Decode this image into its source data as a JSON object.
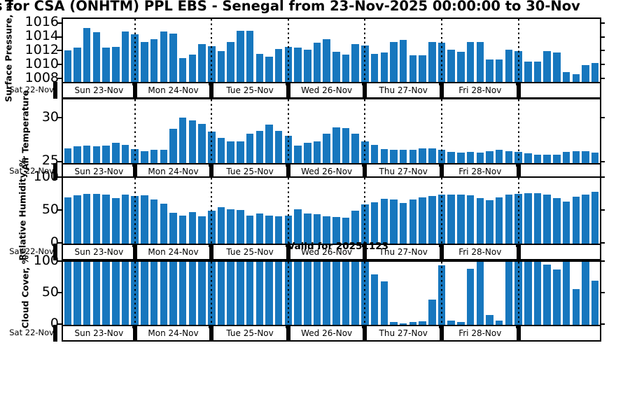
{
  "title": "s for CSA (ONHTM) PPL EBS  - Senegal from 23-Nov-2025 00:00:00 to 30-Nov",
  "valid_label": "Valid for 20251123",
  "bar_color": "#1777be",
  "x_axis": {
    "left_outside_label": "Sat 22-Nov",
    "day_labels": [
      "Sun 23-Nov",
      "Mon 24-Nov",
      "Tue 25-Nov",
      "Wed 26-Nov",
      "Thu 27-Nov",
      "Fri 28-Nov"
    ],
    "bars_per_day": 8,
    "num_days": 7,
    "interval_hours": 3
  },
  "chart_data": [
    {
      "id": "surface-pressure",
      "type": "bar",
      "ylabel": "Surface Pressure, mb",
      "ylim": [
        1007.6,
        1016.7
      ],
      "yticks": [
        1008,
        1010,
        1012,
        1014,
        1016
      ],
      "grid": "vertical-dotted-day-boundaries",
      "values": [
        1012.2,
        1012.6,
        1015.4,
        1014.8,
        1012.6,
        1012.7,
        1014.9,
        1014.5,
        1013.4,
        1013.8,
        1014.9,
        1014.6,
        1011.0,
        1011.5,
        1013.1,
        1012.8,
        1012.1,
        1013.4,
        1015.0,
        1015.0,
        1011.6,
        1011.2,
        1012.4,
        1012.7,
        1012.6,
        1012.3,
        1013.3,
        1013.8,
        1011.9,
        1011.5,
        1013.1,
        1012.9,
        1011.6,
        1011.8,
        1013.4,
        1013.7,
        1011.4,
        1011.4,
        1013.4,
        1013.3,
        1012.3,
        1011.9,
        1013.4,
        1013.4,
        1010.8,
        1010.8,
        1012.3,
        1012.0,
        1010.5,
        1010.5,
        1012.1,
        1011.8,
        1009.0,
        1008.7,
        1010.0,
        1010.3
      ]
    },
    {
      "id": "air-temperature",
      "type": "bar",
      "ylabel": "Air Temperature",
      "ylim": [
        24.9,
        32.2
      ],
      "yticks": [
        25,
        30
      ],
      "grid": "vertical-dotted-day-boundaries",
      "values": [
        26.6,
        26.8,
        26.9,
        26.8,
        26.9,
        27.2,
        27.0,
        26.5,
        26.3,
        26.4,
        26.4,
        28.8,
        30.1,
        29.8,
        29.4,
        28.5,
        27.8,
        27.4,
        27.4,
        28.3,
        28.6,
        29.3,
        28.6,
        28.0,
        26.9,
        27.2,
        27.4,
        28.3,
        29.0,
        28.9,
        28.3,
        27.4,
        27.0,
        26.5,
        26.4,
        26.4,
        26.4,
        26.6,
        26.6,
        26.4,
        26.2,
        26.1,
        26.2,
        26.1,
        26.3,
        26.4,
        26.3,
        26.2,
        26.0,
        25.9,
        25.9,
        25.9,
        26.2,
        26.3,
        26.3,
        26.1
      ]
    },
    {
      "id": "relative-humidity",
      "type": "bar",
      "ylabel": "Relative Humidity, %",
      "ylim": [
        0,
        100
      ],
      "yticks": [
        0,
        50,
        100
      ],
      "grid": "vertical-dotted-day-boundaries",
      "values": [
        70,
        73,
        76,
        76,
        74,
        69,
        74,
        72,
        73,
        67,
        61,
        47,
        43,
        48,
        42,
        50,
        55,
        52,
        51,
        43,
        46,
        43,
        41,
        43,
        52,
        46,
        45,
        42,
        40,
        39,
        50,
        60,
        63,
        68,
        67,
        62,
        67,
        70,
        72,
        75,
        75,
        74,
        73,
        69,
        66,
        70,
        74,
        76,
        77,
        77,
        75,
        69,
        64,
        71,
        75,
        79
      ]
    },
    {
      "id": "cloud-cover",
      "type": "bar",
      "ylabel": "Cloud Cover, %",
      "ylim": [
        0,
        100
      ],
      "yticks": [
        0,
        50,
        100
      ],
      "grid": "vertical-dotted-day-boundaries",
      "values": [
        100,
        100,
        100,
        100,
        100,
        100,
        100,
        100,
        100,
        100,
        100,
        100,
        100,
        100,
        100,
        100,
        100,
        100,
        100,
        100,
        100,
        100,
        100,
        100,
        100,
        100,
        100,
        100,
        100,
        100,
        100,
        100,
        80,
        69,
        4,
        2,
        4,
        6,
        40,
        95,
        7,
        5,
        89,
        100,
        16,
        7,
        100,
        100,
        100,
        100,
        96,
        88,
        100,
        57,
        100,
        70
      ]
    }
  ]
}
